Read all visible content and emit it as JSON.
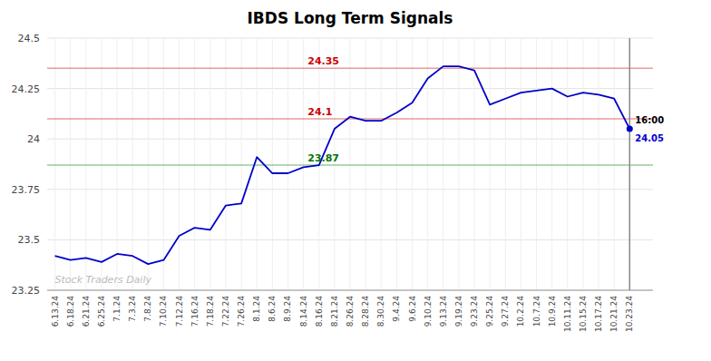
{
  "chart_data": {
    "type": "line",
    "title": "IBDS Long Term Signals",
    "categories": [
      "6.13.24",
      "6.18.24",
      "6.21.24",
      "6.25.24",
      "7.1.24",
      "7.3.24",
      "7.8.24",
      "7.10.24",
      "7.12.24",
      "7.16.24",
      "7.18.24",
      "7.22.24",
      "7.26.24",
      "8.1.24",
      "8.6.24",
      "8.9.24",
      "8.14.24",
      "8.16.24",
      "8.21.24",
      "8.26.24",
      "8.28.24",
      "8.30.24",
      "9.4.24",
      "9.6.24",
      "9.10.24",
      "9.13.24",
      "9.19.24",
      "9.23.24",
      "9.25.24",
      "9.27.24",
      "10.2.24",
      "10.7.24",
      "10.9.24",
      "10.11.24",
      "10.15.24",
      "10.17.24",
      "10.21.24",
      "10.23.24"
    ],
    "values": [
      23.42,
      23.4,
      23.41,
      23.39,
      23.43,
      23.42,
      23.38,
      23.4,
      23.52,
      23.56,
      23.55,
      23.67,
      23.68,
      23.91,
      23.83,
      23.83,
      23.86,
      23.87,
      24.05,
      24.11,
      24.09,
      24.09,
      24.13,
      24.18,
      24.3,
      24.36,
      24.36,
      24.34,
      24.17,
      24.2,
      24.23,
      24.24,
      24.25,
      24.21,
      24.23,
      24.22,
      24.2,
      24.05
    ],
    "color": "#0000cc",
    "ylim": [
      23.25,
      24.5
    ],
    "yticks": [
      23.25,
      23.5,
      23.75,
      24,
      24.25,
      24.5
    ],
    "grid": true,
    "annotations": [
      {
        "y": 24.35,
        "label": "24.35",
        "color": "#cc0000"
      },
      {
        "y": 24.1,
        "label": "24.1",
        "color": "#cc0000"
      },
      {
        "y": 23.87,
        "label": "23.87",
        "color": "#007700"
      }
    ],
    "end_label": {
      "text": "16:00",
      "value_label": "24.05"
    },
    "watermark": "Stock Traders Daily"
  }
}
